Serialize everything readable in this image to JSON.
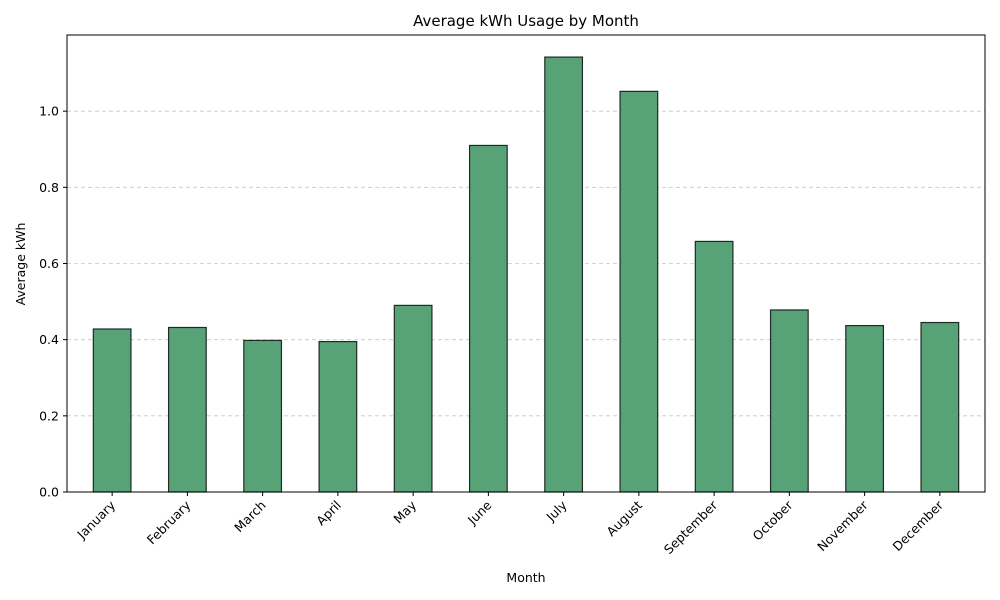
{
  "chart_data": {
    "type": "bar",
    "title": "Average kWh Usage by Month",
    "xlabel": "Month",
    "ylabel": "Average kWh",
    "categories": [
      "January",
      "February",
      "March",
      "April",
      "May",
      "June",
      "July",
      "August",
      "September",
      "October",
      "November",
      "December"
    ],
    "values": [
      0.428,
      0.432,
      0.398,
      0.395,
      0.49,
      0.91,
      1.142,
      1.052,
      0.658,
      0.478,
      0.437,
      0.445
    ],
    "ylim": [
      0,
      1.2
    ],
    "yticks": [
      0.0,
      0.2,
      0.4,
      0.6,
      0.8,
      1.0
    ],
    "ytick_labels": [
      "0.0",
      "0.2",
      "0.4",
      "0.6",
      "0.8",
      "1.0"
    ],
    "grid": "y",
    "bar_color": "#57a377",
    "edge_color": "#1f2a24"
  }
}
